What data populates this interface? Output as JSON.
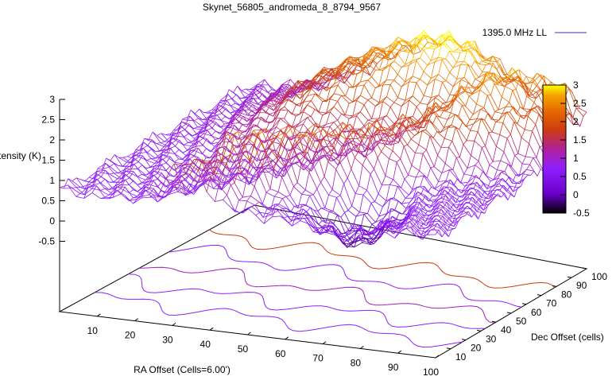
{
  "chart_data": {
    "type": "surface3d",
    "title": "Skynet_56805_andromeda_8_8794_9567",
    "zlabel": "Intensity (K)",
    "xlabel": "RA Offset (Cells=6.00')",
    "ylabel": "Dec Offset (cells)",
    "legend": {
      "label": "1395.0 MHz LL",
      "position": "top-right",
      "color": "#7a4fd0"
    },
    "z_ticks": [
      "3",
      "2.5",
      "2",
      "1.5",
      "1",
      "0.5",
      "0",
      "-0.5"
    ],
    "z_tick_values": [
      3,
      2.5,
      2,
      1.5,
      1,
      0.5,
      0,
      -0.5
    ],
    "z_range": [
      -0.5,
      3
    ],
    "x_ticks": [
      "10",
      "20",
      "30",
      "40",
      "50",
      "60",
      "70",
      "80",
      "90",
      "100"
    ],
    "y_ticks": [
      "10",
      "20",
      "30",
      "40",
      "50",
      "60",
      "70",
      "80",
      "90",
      "100"
    ],
    "x_range": [
      0,
      100
    ],
    "y_range": [
      0,
      100
    ],
    "colorbar": {
      "ticks": [
        "3",
        "2.5",
        "2",
        "1.5",
        "1",
        "0.5",
        "0",
        "-0.5"
      ],
      "tick_values": [
        3,
        2.5,
        2,
        1.5,
        1,
        0.5,
        0,
        -0.5
      ],
      "range": [
        -0.5,
        3
      ],
      "colors": [
        "#000000",
        "#6a00c8",
        "#8f1fff",
        "#b0209a",
        "#cc3c10",
        "#e66a00",
        "#f5a300",
        "#ffff00"
      ]
    },
    "surface_summary": {
      "peak_value": 3,
      "peak_location": "near RA 60, Dec 95",
      "ridges": "two diagonal ridges running toward low Dec",
      "baseline": 0.8
    }
  }
}
